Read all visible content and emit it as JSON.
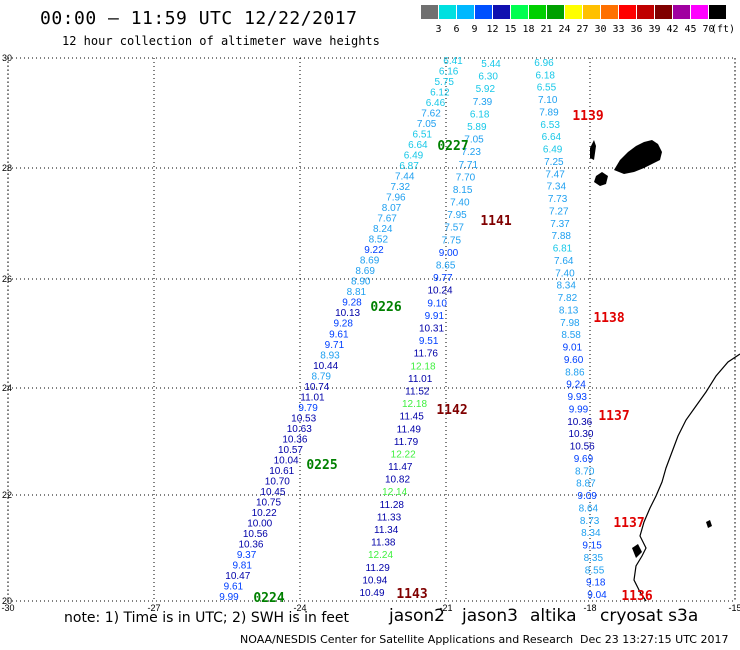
{
  "header": {
    "title": "00:00 – 11:59 UTC 12/22/2017",
    "subtitle": "12 hour collection of altimeter wave heights"
  },
  "scale": {
    "labels": [
      "3",
      "6",
      "9",
      "12",
      "15",
      "18",
      "21",
      "24",
      "27",
      "30",
      "33",
      "36",
      "39",
      "42",
      "45",
      "70"
    ],
    "unit": "(ft)",
    "colors": [
      "#707070",
      "#00e0e0",
      "#00b8ff",
      "#0050ff",
      "#1010b0",
      "#00ff50",
      "#00d000",
      "#00a000",
      "#ffff00",
      "#ffc000",
      "#ff7000",
      "#ff0000",
      "#c00000",
      "#800000",
      "#a000a0",
      "#ff00ff",
      "#000000"
    ]
  },
  "map": {
    "lat_labels": [
      "30",
      "28",
      "26",
      "24",
      "22",
      "20"
    ],
    "lon_labels": [
      "-30",
      "-27",
      "-24",
      "-21",
      "-18",
      "-15"
    ]
  },
  "passes": [
    {
      "label": "1139",
      "color": "#e00000"
    },
    {
      "label": "0227",
      "color": "#008000"
    },
    {
      "label": "1141",
      "color": "#800000"
    },
    {
      "label": "0226",
      "color": "#008000"
    },
    {
      "label": "1138",
      "color": "#e00000"
    },
    {
      "label": "1142",
      "color": "#800000"
    },
    {
      "label": "1137",
      "color": "#e00000"
    },
    {
      "label": "0225",
      "color": "#008000"
    },
    {
      "label": "1137",
      "color": "#e00000"
    },
    {
      "label": "0224",
      "color": "#008000"
    },
    {
      "label": "1143",
      "color": "#800000"
    },
    {
      "label": "1136",
      "color": "#e00000"
    }
  ],
  "tracks": {
    "a": [
      "6.41",
      "6.16",
      "5.75",
      "6.12",
      "6.46",
      "7.62",
      "7.05",
      "6.51",
      "6.64",
      "6.49",
      "6.87",
      "7.44",
      "7.32",
      "7.96",
      "8.07",
      "7.67",
      "8.24",
      "8.52",
      "9.22",
      "8.69",
      "8.69",
      "8.90",
      "8.81",
      "9.28",
      "10.13",
      "9.28",
      "9.61",
      "9.71",
      "8.93",
      "10.44",
      "8.79",
      "10.74",
      "11.01",
      "9.79",
      "10.53",
      "10.63",
      "10.36",
      "10.57",
      "10.04",
      "10.61",
      "10.70",
      "10.45",
      "10.75",
      "10.22",
      "10.00",
      "10.56",
      "10.36",
      "9.37",
      "9.81",
      "10.47",
      "9.61",
      "9.99"
    ],
    "b": [
      "5.44",
      "6.30",
      "5.92",
      "7.39",
      "6.18",
      "5.89",
      "7.05",
      "7.23",
      "7.71",
      "7.70",
      "8.15",
      "7.40",
      "7.95",
      "7.57",
      "7.75",
      "9.00",
      "8.65",
      "9.77",
      "10.24",
      "9.10",
      "9.91",
      "10.31",
      "9.51",
      "11.76",
      "12.18",
      "11.01",
      "11.52",
      "12.18",
      "11.45",
      "11.49",
      "11.79",
      "12.22",
      "11.47",
      "10.82",
      "12.14",
      "11.28",
      "11.33",
      "11.34",
      "11.38",
      "12.24",
      "11.29",
      "10.94",
      "10.49"
    ],
    "c": [
      "6.96",
      "6.18",
      "6.55",
      "7.10",
      "7.89",
      "6.53",
      "6.64",
      "6.49",
      "7.25",
      "7.47",
      "7.34",
      "7.73",
      "7.27",
      "7.37",
      "7.88",
      "6.81",
      "7.64",
      "7.40",
      "8.34",
      "7.82",
      "8.13",
      "7.98",
      "8.58",
      "9.01",
      "9.60",
      "8.86",
      "9.24",
      "9.93",
      "9.99",
      "10.36",
      "10.30",
      "10.56",
      "9.69",
      "8.70",
      "8.87",
      "9.09",
      "8.64",
      "8.73",
      "8.34",
      "9.15",
      "8.35",
      "8.55",
      "9.18",
      "9.04"
    ]
  },
  "footer": {
    "note": "note: 1) Time is in UTC; 2) SWH is in feet",
    "credit": "NOAA/NESDIS Center for Satellite Applications and Research",
    "timestamp": "Dec 23 13:27:15 UTC 2017",
    "satellites": [
      {
        "name": "jason2",
        "color": "#0000c0"
      },
      {
        "name": "jason3",
        "color": "#009000"
      },
      {
        "name": "altika",
        "color": "#ff9000"
      },
      {
        "name": "cryosat s3a",
        "color": "#c00000"
      }
    ]
  }
}
